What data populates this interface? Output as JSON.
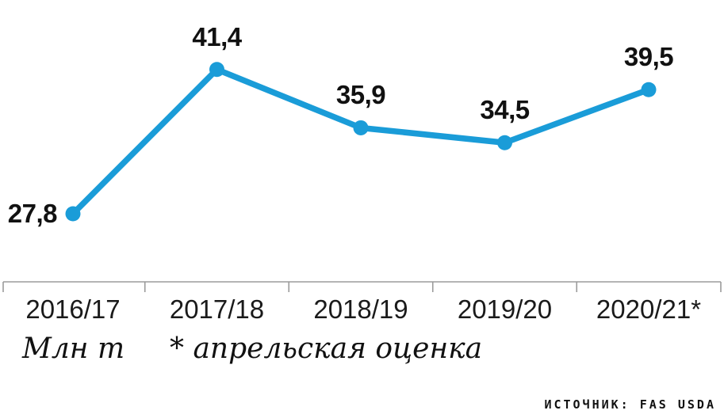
{
  "chart_data": {
    "type": "line",
    "categories": [
      "2016/17",
      "2017/18",
      "2018/19",
      "2019/20",
      "2020/21*"
    ],
    "values": [
      27.8,
      41.4,
      35.9,
      34.5,
      39.5
    ],
    "value_labels": [
      "27,8",
      "41,4",
      "35,9",
      "34,5",
      "39,5"
    ],
    "title": "",
    "unit_label": "Млн т",
    "footnote": "* апрельская оценка",
    "source": "ИСТОЧНИК: FAS USDA",
    "line_color": "#1a9cd8",
    "marker_color": "#1a9cd8",
    "axis_color": "#9b9b9b",
    "legend": "none",
    "grid": false,
    "ylim": [
      25,
      44
    ]
  }
}
